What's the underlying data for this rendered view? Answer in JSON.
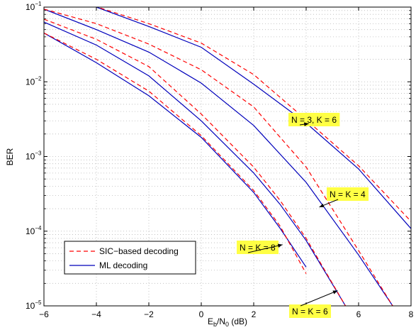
{
  "chart_data": {
    "type": "line",
    "xlabel": {
      "base": "E",
      "sub1": "b",
      "mid": "/N",
      "sub2": "0",
      "tail": " (dB)"
    },
    "ylabel": "BER",
    "xlim": [
      -6,
      8
    ],
    "ylim": [
      1e-05,
      0.1
    ],
    "yscale": "log",
    "grid": true,
    "grid_style": "dotted",
    "x_ticks": [
      -6,
      -4,
      -2,
      0,
      2,
      4,
      6,
      8
    ],
    "x_tick_labels": [
      "−6",
      "−4",
      "−2",
      "0",
      "2",
      "4",
      "6",
      "8"
    ],
    "y_ticks": [
      {
        "value": 1e-05,
        "base": "10",
        "exp": "−5"
      },
      {
        "value": 0.0001,
        "base": "10",
        "exp": "−4"
      },
      {
        "value": 0.001,
        "base": "10",
        "exp": "−3"
      },
      {
        "value": 0.01,
        "base": "10",
        "exp": "−2"
      },
      {
        "value": 0.1,
        "base": "10",
        "exp": "−1"
      }
    ],
    "legend": {
      "placement": "bottom-left",
      "entries": [
        {
          "label": "SIC−based decoding",
          "color": "#ff0000",
          "dash": "dashed"
        },
        {
          "label": "ML decoding",
          "color": "#0000bb",
          "dash": "solid"
        }
      ]
    },
    "series": [
      {
        "group": "N = 3, K = 6",
        "style": "sic",
        "x": [
          -6,
          -4,
          -2,
          0,
          2,
          4,
          6,
          8
        ],
        "y": [
          0.1,
          0.101,
          0.06,
          0.033,
          0.0125,
          0.0031,
          0.00075,
          0.000135
        ]
      },
      {
        "group": "N = 3, K = 6",
        "style": "ml",
        "x": [
          -4,
          -2,
          0,
          2,
          4,
          6,
          8
        ],
        "y": [
          0.1,
          0.055,
          0.029,
          0.0093,
          0.0028,
          0.00068,
          0.000108
        ]
      },
      {
        "group": "N = K = 4",
        "style": "sic",
        "x": [
          -6,
          -4,
          -2,
          0,
          2,
          4,
          6,
          7.3
        ],
        "y": [
          0.094,
          0.06,
          0.032,
          0.0145,
          0.0046,
          0.00072,
          5.5e-05,
          1e-05
        ]
      },
      {
        "group": "N = K = 4",
        "style": "ml",
        "x": [
          -6,
          -4,
          -2,
          0,
          2,
          4,
          6,
          7.3
        ],
        "y": [
          0.094,
          0.05,
          0.025,
          0.0096,
          0.0026,
          0.00045,
          4.8e-05,
          1e-05
        ]
      },
      {
        "group": "N = K = 6",
        "style": "sic",
        "x": [
          -6,
          -4,
          -2,
          0,
          2,
          3,
          4,
          5.5
        ],
        "y": [
          0.069,
          0.037,
          0.016,
          0.0037,
          0.00072,
          0.00026,
          8e-05,
          1e-05
        ]
      },
      {
        "group": "N = K = 6",
        "style": "ml",
        "x": [
          -6,
          -4,
          -2,
          0,
          2,
          3,
          4,
          5.5
        ],
        "y": [
          0.063,
          0.031,
          0.012,
          0.003,
          0.0006,
          0.00023,
          7.5e-05,
          1e-05
        ]
      },
      {
        "group": "N = K = 8",
        "style": "sic",
        "x": [
          -6,
          -4,
          -2,
          0,
          2,
          3,
          4
        ],
        "y": [
          0.045,
          0.02,
          0.0075,
          0.0019,
          0.00035,
          0.000118,
          2.7e-05
        ]
      },
      {
        "group": "N = K = 8",
        "style": "ml",
        "x": [
          -6,
          -4,
          -2,
          0,
          2,
          3,
          4
        ],
        "y": [
          0.045,
          0.018,
          0.0065,
          0.0018,
          0.00033,
          0.00011,
          3.3e-05
        ]
      }
    ],
    "annotations": [
      {
        "text": "N = 3, K = 6",
        "arrow_to": {
          "x": 4.1,
          "y": 0.00275
        }
      },
      {
        "text": "N = K = 4",
        "arrow_to": {
          "x": 4.5,
          "y": 0.00021
        }
      },
      {
        "text": "N = K = 8",
        "arrow_to": {
          "x": 3.1,
          "y": 6.6e-05
        }
      },
      {
        "text": "N = K = 6",
        "arrow_to": {
          "x": 5.2,
          "y": 1.6e-05
        }
      }
    ],
    "annotation_color": "#ffff44",
    "colors": {
      "sic": "#ff0000",
      "ml": "#0000bb",
      "grid": "#b8b8b8"
    }
  }
}
